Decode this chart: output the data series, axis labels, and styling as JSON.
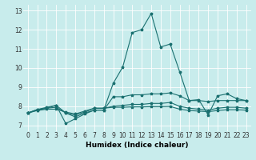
{
  "xlabel": "Humidex (Indice chaleur)",
  "background_color": "#c8ecec",
  "grid_color": "#ffffff",
  "line_color": "#1a7070",
  "x_ticks": [
    0,
    1,
    2,
    3,
    4,
    5,
    6,
    7,
    8,
    9,
    10,
    11,
    12,
    13,
    14,
    15,
    16,
    17,
    18,
    19,
    20,
    21,
    22,
    23
  ],
  "y_ticks": [
    7,
    8,
    9,
    10,
    11,
    12,
    13
  ],
  "xlim": [
    -0.5,
    23.5
  ],
  "ylim": [
    6.7,
    13.3
  ],
  "lines": [
    {
      "x": [
        0,
        1,
        2,
        3,
        4,
        5,
        6,
        7,
        8,
        9,
        10,
        11,
        12,
        13,
        14,
        15,
        16,
        17,
        18,
        19,
        20,
        21,
        22,
        23
      ],
      "y": [
        7.65,
        7.83,
        7.95,
        8.05,
        7.1,
        7.35,
        7.6,
        7.8,
        7.8,
        9.2,
        10.05,
        11.85,
        12.0,
        12.85,
        11.1,
        11.25,
        9.8,
        8.3,
        8.35,
        7.55,
        8.55,
        8.65,
        8.4,
        8.3
      ]
    },
    {
      "x": [
        0,
        1,
        2,
        3,
        4,
        5,
        6,
        7,
        8,
        9,
        10,
        11,
        12,
        13,
        14,
        15,
        16,
        17,
        18,
        19,
        20,
        21,
        22,
        23
      ],
      "y": [
        7.65,
        7.83,
        7.9,
        8.05,
        7.65,
        7.45,
        7.65,
        7.8,
        7.8,
        8.5,
        8.5,
        8.6,
        8.6,
        8.65,
        8.65,
        8.7,
        8.55,
        8.3,
        8.3,
        8.25,
        8.3,
        8.3,
        8.3,
        8.3
      ]
    },
    {
      "x": [
        0,
        1,
        2,
        3,
        4,
        5,
        6,
        7,
        8,
        9,
        10,
        11,
        12,
        13,
        14,
        15,
        16,
        17,
        18,
        19,
        20,
        21,
        22,
        23
      ],
      "y": [
        7.65,
        7.8,
        7.9,
        7.95,
        7.65,
        7.55,
        7.7,
        7.9,
        7.9,
        8.0,
        8.05,
        8.1,
        8.1,
        8.15,
        8.15,
        8.2,
        8.0,
        7.9,
        7.85,
        7.8,
        7.9,
        7.95,
        7.95,
        7.9
      ]
    },
    {
      "x": [
        0,
        1,
        2,
        3,
        4,
        5,
        6,
        7,
        8,
        9,
        10,
        11,
        12,
        13,
        14,
        15,
        16,
        17,
        18,
        19,
        20,
        21,
        22,
        23
      ],
      "y": [
        7.65,
        7.78,
        7.85,
        7.85,
        7.7,
        7.6,
        7.75,
        7.9,
        7.9,
        7.95,
        7.95,
        7.97,
        7.97,
        7.98,
        7.98,
        7.99,
        7.85,
        7.78,
        7.75,
        7.72,
        7.78,
        7.82,
        7.82,
        7.8
      ]
    }
  ],
  "marker": "*",
  "markersize": 2.5,
  "linewidth": 0.8,
  "fontsize_label": 6.5,
  "fontsize_tick": 5.5
}
